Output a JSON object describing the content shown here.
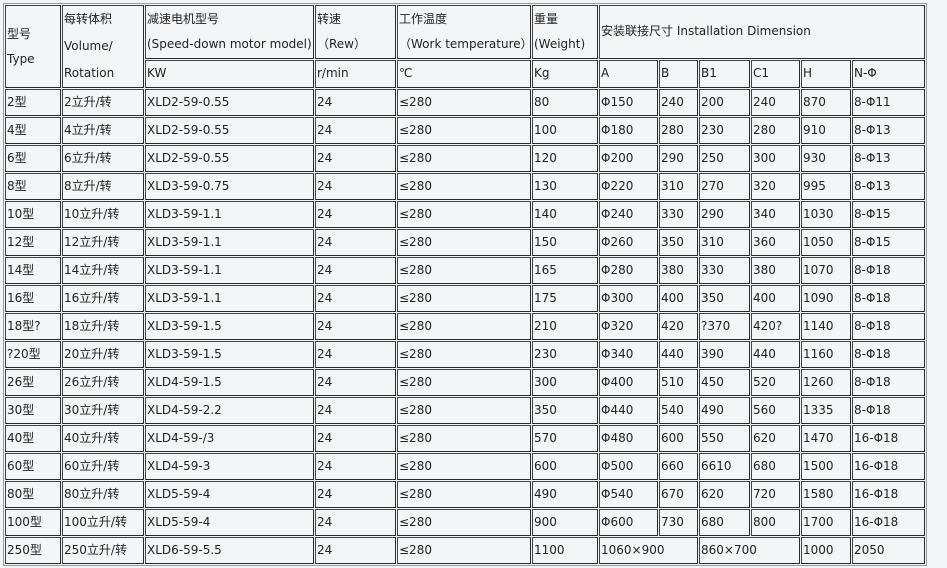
{
  "header": {
    "type": [
      "型号",
      "Type"
    ],
    "volume": [
      "每转体积",
      "Volume/",
      "Rotation"
    ],
    "motor": [
      "减速电机型号",
      "(Speed-down motor model)"
    ],
    "motor_unit": "KW",
    "speed": [
      "转速",
      "（Rew）"
    ],
    "speed_unit": "r/min",
    "temp": [
      "工作温度",
      "（Work temperature）"
    ],
    "temp_unit": "℃",
    "weight": [
      "重量",
      "(Weight)"
    ],
    "weight_unit": "Kg",
    "install": "安装联接尺寸 Installation Dimension",
    "install_cols": [
      "A",
      "B",
      "B1",
      "C1",
      "H",
      "N-Φ"
    ]
  },
  "rows": [
    [
      "2型",
      "2立升/转",
      "XLD2-59-0.55",
      "24",
      "≤280",
      "80",
      "Φ150",
      "240",
      "200",
      "240",
      "870",
      "8-Φ11"
    ],
    [
      "4型",
      "4立升/转",
      "XLD2-59-0.55",
      "24",
      "≤280",
      "100",
      "Φ180",
      "280",
      "230",
      "280",
      "910",
      "8-Φ13"
    ],
    [
      "6型",
      "6立升/转",
      "XLD2-59-0.55",
      "24",
      "≤280",
      "120",
      "Φ200",
      "290",
      "250",
      "300",
      "930",
      "8-Φ13"
    ],
    [
      "8型",
      "8立升/转",
      "XLD3-59-0.75",
      "24",
      "≤280",
      "130",
      "Φ220",
      "310",
      "270",
      "320",
      "995",
      "8-Φ13"
    ],
    [
      "10型",
      "10立升/转",
      "XLD3-59-1.1",
      "24",
      "≤280",
      "140",
      "Φ240",
      "330",
      "290",
      "340",
      "1030",
      "8-Φ15"
    ],
    [
      "12型",
      "12立升/转",
      "XLD3-59-1.1",
      "24",
      "≤280",
      "150",
      "Φ260",
      "350",
      "310",
      "360",
      "1050",
      "8-Φ15"
    ],
    [
      "14型",
      "14立升/转",
      "XLD3-59-1.1",
      "24",
      "≤280",
      "165",
      "Φ280",
      "380",
      "330",
      "380",
      "1070",
      "8-Φ18"
    ],
    [
      "16型",
      "16立升/转",
      "XLD3-59-1.1",
      "24",
      "≤280",
      "175",
      "Φ300",
      "400",
      "350",
      "400",
      "1090",
      "8-Φ18"
    ],
    [
      "18型?",
      "18立升/转",
      "XLD3-59-1.5",
      "24",
      "≤280",
      "210",
      "Φ320",
      "420",
      "?370",
      "420?",
      "1140",
      "8-Φ18"
    ],
    [
      "?20型",
      "20立升/转",
      "XLD3-59-1.5",
      "24",
      "≤280",
      "230",
      "Φ340",
      "440",
      "390",
      "440",
      "1160",
      "8-Φ18"
    ],
    [
      "26型",
      "26立升/转",
      "XLD4-59-1.5",
      "24",
      "≤280",
      "300",
      "Φ400",
      "510",
      "450",
      "520",
      "1260",
      "8-Φ18"
    ],
    [
      "30型",
      "30立升/转",
      "XLD4-59-2.2",
      "24",
      "≤280",
      "350",
      "Φ440",
      "540",
      "490",
      "560",
      "1335",
      "8-Φ18"
    ],
    [
      "40型",
      "40立升/转",
      "XLD4-59-/3",
      "24",
      "≤280",
      "570",
      "Φ480",
      "600",
      "550",
      "620",
      "1470",
      "16-Φ18"
    ],
    [
      "60型",
      "60立升/转",
      "XLD4-59-3",
      "24",
      "≤280",
      "600",
      "Φ500",
      "660",
      "6610",
      "680",
      "1500",
      "16-Φ18"
    ],
    [
      "80型",
      "80立升/转",
      "XLD5-59-4",
      "24",
      "≤280",
      "490",
      "Φ540",
      "670",
      "620",
      "720",
      "1580",
      "16-Φ18"
    ],
    [
      "100型",
      "100立升/转",
      "XLD5-59-4",
      "24",
      "≤280",
      "900",
      "Φ600",
      "730",
      "680",
      "800",
      "1700",
      "16-Φ18"
    ]
  ],
  "last_row": [
    "250型",
    "250立升/转",
    "XLD6-59-5.5",
    "24",
    "≤280",
    "1100",
    "1060×900",
    "860×700",
    "1000",
    "2050"
  ]
}
